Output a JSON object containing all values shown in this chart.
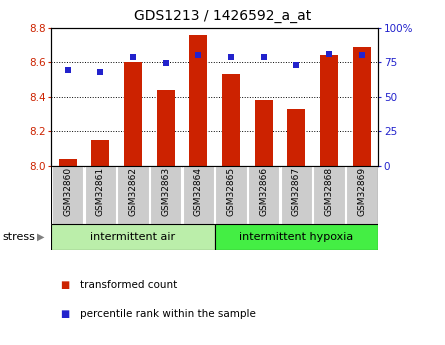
{
  "title": "GDS1213 / 1426592_a_at",
  "samples": [
    "GSM32860",
    "GSM32861",
    "GSM32862",
    "GSM32863",
    "GSM32864",
    "GSM32865",
    "GSM32866",
    "GSM32867",
    "GSM32868",
    "GSM32869"
  ],
  "transformed_count": [
    8.04,
    8.15,
    8.6,
    8.44,
    8.76,
    8.53,
    8.38,
    8.33,
    8.64,
    8.69
  ],
  "percentile_rank": [
    69,
    68,
    79,
    74,
    80,
    79,
    79,
    73,
    81,
    80
  ],
  "ylim_left": [
    8.0,
    8.8
  ],
  "ylim_right": [
    0,
    100
  ],
  "yticks_left": [
    8.0,
    8.2,
    8.4,
    8.6,
    8.8
  ],
  "yticks_right": [
    0,
    25,
    50,
    75,
    100
  ],
  "bar_color": "#cc2200",
  "dot_color": "#2222cc",
  "group1_label": "intermittent air",
  "group2_label": "intermittent hypoxia",
  "group1_color": "#bbeeaa",
  "group2_color": "#44ee44",
  "stress_label": "stress",
  "arrow": "▶",
  "legend_bar": "transformed count",
  "legend_dot": "percentile rank within the sample",
  "xtick_bg": "#cccccc",
  "n_group1": 5,
  "n_group2": 5,
  "figsize": [
    4.45,
    3.45
  ],
  "dpi": 100
}
